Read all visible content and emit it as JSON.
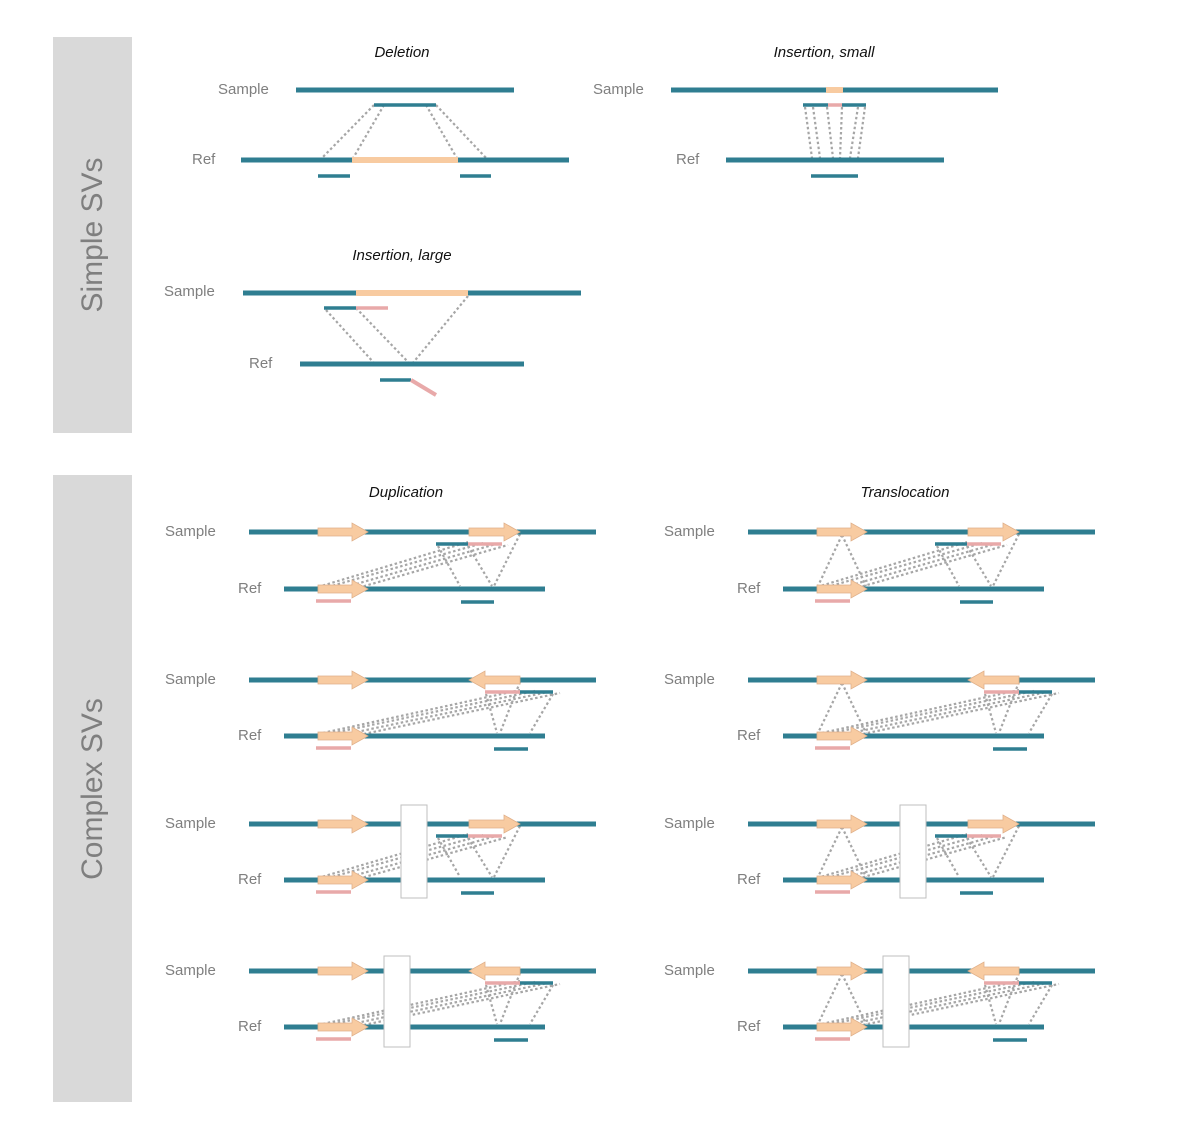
{
  "sections": {
    "simple": "Simple SVs",
    "complex": "Complex SVs"
  },
  "titles": {
    "deletion": "Deletion",
    "insertion_small": "Insertion, small",
    "insertion_large": "Insertion, large",
    "duplication": "Duplication",
    "translocation": "Translocation"
  },
  "labels": {
    "sample": "Sample",
    "ref": "Ref"
  },
  "colors": {
    "panel": "#d9d9d9",
    "panel_text": "#7f7f7f",
    "sequence": "#2f7e91",
    "inserted_segment": "#f8cba1",
    "read_fragment": "#e8a9a9",
    "link": "#a6a6a6",
    "title": "#111111"
  }
}
